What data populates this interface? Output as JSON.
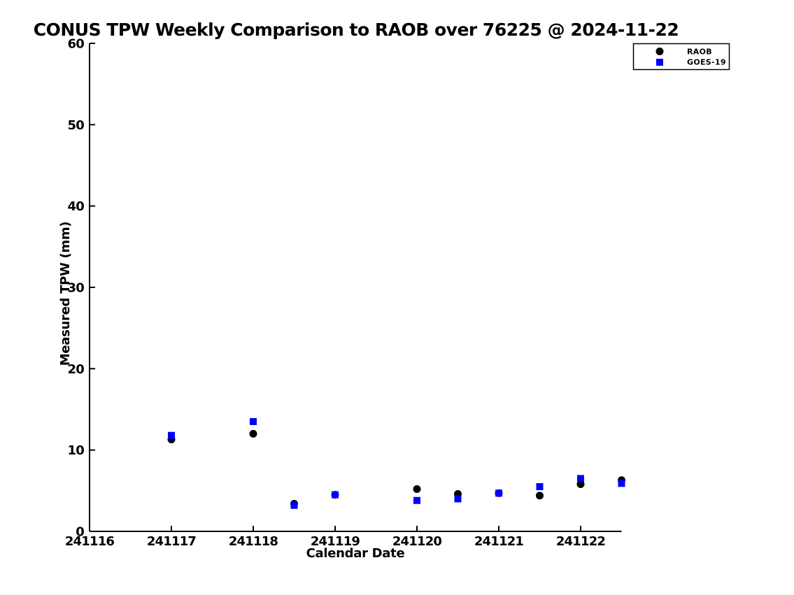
{
  "page": {
    "background_color": "#ffffff",
    "text_color": "#000000"
  },
  "chart_data": {
    "type": "scatter",
    "title": "CONUS TPW Weekly Comparison to RAOB over 76225 @ 2024-11-22",
    "xlabel": "Calendar Date",
    "ylabel": "Measured TPW (mm)",
    "xlim": [
      241116,
      241122.5
    ],
    "ylim": [
      0,
      60
    ],
    "x_ticks": [
      241116,
      241117,
      241118,
      241119,
      241120,
      241121,
      241122
    ],
    "y_ticks": [
      0,
      10,
      20,
      30,
      40,
      50,
      60
    ],
    "grid": false,
    "legend_position": "top-right",
    "series": [
      {
        "name": "RAOB",
        "marker": "circle",
        "color": "#000000",
        "points": [
          [
            241117.0,
            11.3
          ],
          [
            241118.0,
            12.0
          ],
          [
            241118.5,
            3.4
          ],
          [
            241119.0,
            4.5
          ],
          [
            241120.0,
            5.2
          ],
          [
            241120.5,
            4.6
          ],
          [
            241121.0,
            4.7
          ],
          [
            241121.5,
            4.4
          ],
          [
            241122.0,
            5.8
          ],
          [
            241122.5,
            6.3
          ]
        ]
      },
      {
        "name": "GOES-19",
        "marker": "square",
        "color": "#0000ff",
        "points": [
          [
            241117.0,
            11.8
          ],
          [
            241118.0,
            13.5
          ],
          [
            241118.5,
            3.2
          ],
          [
            241119.0,
            4.5
          ],
          [
            241120.0,
            3.8
          ],
          [
            241120.5,
            4.0
          ],
          [
            241121.0,
            4.7
          ],
          [
            241121.5,
            5.5
          ],
          [
            241122.0,
            6.5
          ],
          [
            241122.5,
            5.9
          ]
        ]
      }
    ]
  }
}
